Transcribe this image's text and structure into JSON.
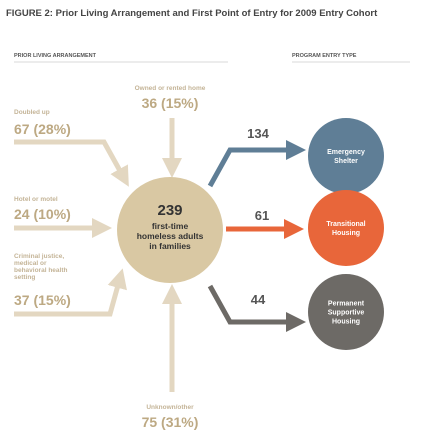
{
  "title": "FIGURE 2: Prior Living Arrangement and First Point of Entry for 2009 Entry Cohort",
  "headers": {
    "left": "PRIOR LIVING ARRANGEMENT",
    "right": "PROGRAM ENTRY TYPE"
  },
  "sources": [
    {
      "label": [
        "Owned or rented home"
      ],
      "value": "36 (15%)"
    },
    {
      "label": [
        "Doubled up"
      ],
      "value": "67 (28%)"
    },
    {
      "label": [
        "Hotel or motel"
      ],
      "value": "24 (10%)"
    },
    {
      "label": [
        "Criminal justice,",
        "medical or",
        "behavioral health",
        "setting"
      ],
      "value": "37 (15%)"
    },
    {
      "label": [
        "Unknown/other"
      ],
      "value": "75 (31%)"
    }
  ],
  "center": {
    "number": "239",
    "text": [
      "first-time",
      "homeless adults",
      "in families"
    ]
  },
  "outputs": [
    {
      "count": "134",
      "label": [
        "Emergency",
        "Shelter"
      ]
    },
    {
      "count": "61",
      "label": [
        "Transitional",
        "Housing"
      ]
    },
    {
      "count": "44",
      "label": [
        "Permanent",
        "Supportive",
        "Housing"
      ]
    }
  ]
}
